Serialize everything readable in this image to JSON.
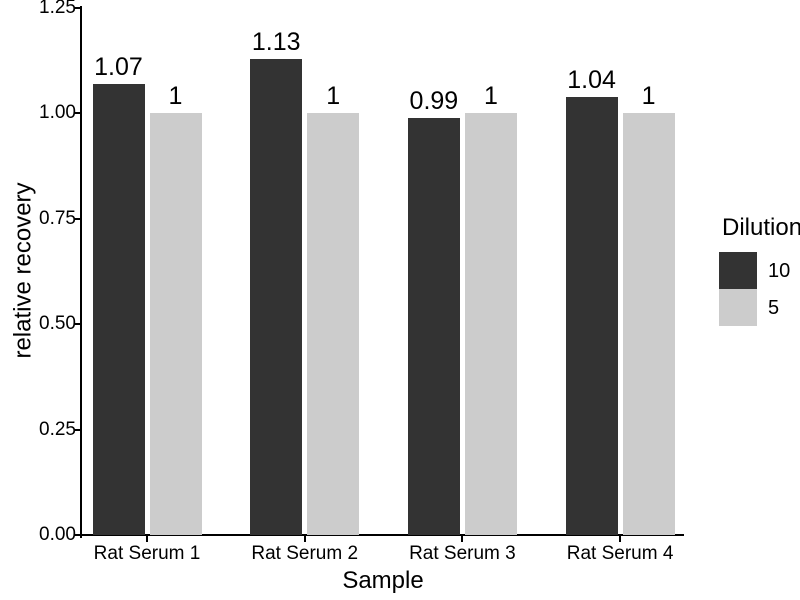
{
  "figure": {
    "background": "#ffffff",
    "axis_color": "#000000",
    "text_color": "#000000"
  },
  "chart_data": {
    "type": "bar",
    "title": "",
    "xlabel": "Sample",
    "ylabel": "relative recovery",
    "categories": [
      "Rat Serum 1",
      "Rat Serum 2",
      "Rat Serum 3",
      "Rat Serum 4"
    ],
    "series": [
      {
        "name": "10",
        "color": "#333333",
        "values": [
          1.07,
          1.13,
          0.99,
          1.04
        ],
        "labels": [
          "1.07",
          "1.13",
          "0.99",
          "1.04"
        ]
      },
      {
        "name": "5",
        "color": "#cccccc",
        "values": [
          1,
          1,
          1,
          1
        ],
        "labels": [
          "1",
          "1",
          "1",
          "1"
        ]
      }
    ],
    "ylim": [
      0,
      1.25
    ],
    "yticks": [
      0,
      0.25,
      0.5,
      0.75,
      1,
      1.25
    ],
    "ytick_labels": [
      "0.00",
      "0.25",
      "0.50",
      "0.75",
      "1.00",
      "1.25"
    ],
    "grid": false,
    "bar_value_labels": true,
    "legend": {
      "title": "Dilution",
      "position": "right"
    }
  }
}
